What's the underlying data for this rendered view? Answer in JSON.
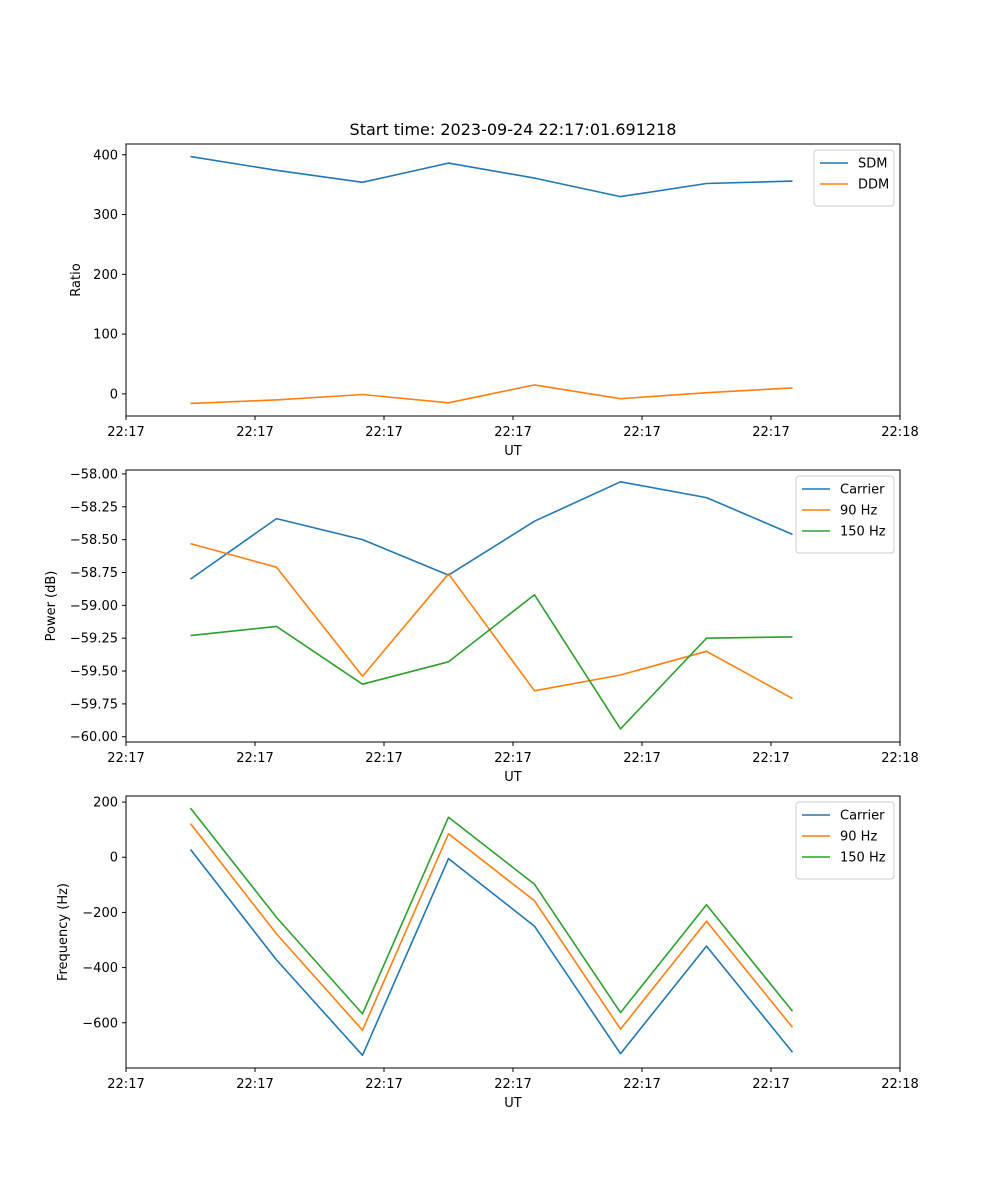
{
  "chart_data": [
    {
      "type": "line",
      "title": "Start time: 2023-09-24 22:17:01.691218",
      "xlabel": "UT",
      "ylabel": "Ratio",
      "xlim": [
        0,
        9
      ],
      "ylim": [
        -37,
        418
      ],
      "x": [
        0.75,
        1.75,
        2.75,
        3.75,
        4.75,
        5.75,
        6.75,
        7.75
      ],
      "xticks": [
        {
          "value": 0,
          "label": "22:17"
        },
        {
          "value": 1.5,
          "label": "22:17"
        },
        {
          "value": 3,
          "label": "22:17"
        },
        {
          "value": 4.5,
          "label": "22:17"
        },
        {
          "value": 6,
          "label": "22:17"
        },
        {
          "value": 7.5,
          "label": "22:17"
        },
        {
          "value": 9,
          "label": "22:18"
        }
      ],
      "yticks": [
        {
          "value": 0,
          "label": "0"
        },
        {
          "value": 100,
          "label": "100"
        },
        {
          "value": 200,
          "label": "200"
        },
        {
          "value": 300,
          "label": "300"
        },
        {
          "value": 400,
          "label": "400"
        }
      ],
      "legend_position": "top-right",
      "series": [
        {
          "name": "SDM",
          "color": "#1f77b4",
          "values": [
            397,
            374,
            354,
            386,
            361,
            330,
            352,
            356
          ]
        },
        {
          "name": "DDM",
          "color": "#ff7f0e",
          "values": [
            -16,
            -10,
            -1,
            -15,
            15,
            -8,
            2,
            10
          ]
        }
      ]
    },
    {
      "type": "line",
      "title": "",
      "xlabel": "UT",
      "ylabel": "Power (dB)",
      "xlim": [
        0,
        9
      ],
      "ylim": [
        -60.04,
        -57.97
      ],
      "x": [
        0.75,
        1.75,
        2.75,
        3.75,
        4.75,
        5.75,
        6.75,
        7.75
      ],
      "xticks": [
        {
          "value": 0,
          "label": "22:17"
        },
        {
          "value": 1.5,
          "label": "22:17"
        },
        {
          "value": 3,
          "label": "22:17"
        },
        {
          "value": 4.5,
          "label": "22:17"
        },
        {
          "value": 6,
          "label": "22:17"
        },
        {
          "value": 7.5,
          "label": "22:17"
        },
        {
          "value": 9,
          "label": "22:18"
        }
      ],
      "yticks": [
        {
          "value": -58.0,
          "label": "−58.00"
        },
        {
          "value": -58.25,
          "label": "−58.25"
        },
        {
          "value": -58.5,
          "label": "−58.50"
        },
        {
          "value": -58.75,
          "label": "−58.75"
        },
        {
          "value": -59.0,
          "label": "−59.00"
        },
        {
          "value": -59.25,
          "label": "−59.25"
        },
        {
          "value": -59.5,
          "label": "−59.50"
        },
        {
          "value": -59.75,
          "label": "−59.75"
        },
        {
          "value": -60.0,
          "label": "−60.00"
        }
      ],
      "legend_position": "top-right",
      "series": [
        {
          "name": "Carrier",
          "color": "#1f77b4",
          "values": [
            -58.8,
            -58.34,
            -58.5,
            -58.77,
            -58.36,
            -58.06,
            -58.18,
            -58.46
          ]
        },
        {
          "name": "90 Hz",
          "color": "#ff7f0e",
          "values": [
            -58.53,
            -58.71,
            -59.54,
            -58.76,
            -59.65,
            -59.53,
            -59.35,
            -59.71
          ]
        },
        {
          "name": "150 Hz",
          "color": "#2ca02c",
          "values": [
            -59.23,
            -59.16,
            -59.6,
            -59.43,
            -58.92,
            -59.94,
            -59.25,
            -59.24
          ]
        }
      ]
    },
    {
      "type": "line",
      "title": "",
      "xlabel": "UT",
      "ylabel": "Frequency (Hz)",
      "xlim": [
        0,
        9
      ],
      "ylim": [
        -764,
        222
      ],
      "x": [
        0.75,
        1.75,
        2.75,
        3.75,
        4.75,
        5.75,
        6.75,
        7.75
      ],
      "xticks": [
        {
          "value": 0,
          "label": "22:17"
        },
        {
          "value": 1.5,
          "label": "22:17"
        },
        {
          "value": 3,
          "label": "22:17"
        },
        {
          "value": 4.5,
          "label": "22:17"
        },
        {
          "value": 6,
          "label": "22:17"
        },
        {
          "value": 7.5,
          "label": "22:17"
        },
        {
          "value": 9,
          "label": "22:18"
        }
      ],
      "yticks": [
        {
          "value": 200,
          "label": "200"
        },
        {
          "value": 0,
          "label": "0"
        },
        {
          "value": -200,
          "label": "−200"
        },
        {
          "value": -400,
          "label": "−400"
        },
        {
          "value": -600,
          "label": "−600"
        }
      ],
      "legend_position": "top-right",
      "series": [
        {
          "name": "Carrier",
          "color": "#1f77b4",
          "values": [
            28,
            -372,
            -718,
            -5,
            -250,
            -712,
            -322,
            -707
          ]
        },
        {
          "name": "90 Hz",
          "color": "#ff7f0e",
          "values": [
            122,
            -278,
            -627,
            85,
            -158,
            -623,
            -232,
            -617
          ]
        },
        {
          "name": "150 Hz",
          "color": "#2ca02c",
          "values": [
            178,
            -218,
            -568,
            145,
            -98,
            -563,
            -172,
            -558
          ]
        }
      ]
    }
  ]
}
